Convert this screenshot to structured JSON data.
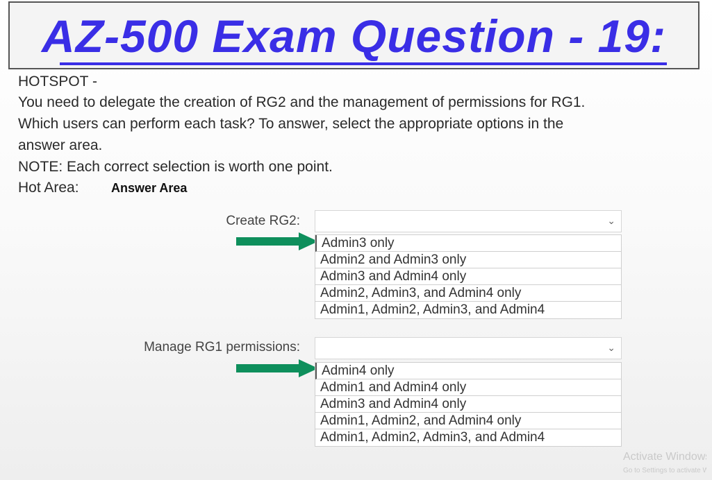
{
  "title": "AZ-500 Exam Question - 19:",
  "question": {
    "line1": "HOTSPOT -",
    "line2": "You need to delegate the creation of RG2 and the management of permissions for RG1.",
    "line3": "Which users can perform each task? To answer, select the appropriate options in the",
    "line4": "answer area.",
    "line5": "NOTE: Each correct selection is worth one point.",
    "hot_area_label": "Hot Area:",
    "answer_area_label": "Answer Area"
  },
  "create_rg2": {
    "label": "Create RG2:",
    "selected_index": 0,
    "options": [
      "Admin3 only",
      "Admin2 and Admin3 only",
      "Admin3 and Admin4 only",
      "Admin2, Admin3, and Admin4 only",
      "Admin1, Admin2, Admin3, and Admin4"
    ]
  },
  "manage_rg1": {
    "label": "Manage RG1 permissions:",
    "selected_index": 0,
    "options": [
      "Admin4 only",
      "Admin1 and Admin4 only",
      "Admin3 and Admin4 only",
      "Admin1, Admin2, and Admin4 only",
      "Admin1, Admin2, Admin3, and Admin4"
    ]
  },
  "colors": {
    "title": "#3a2ee6",
    "arrow": "#0e8f5c"
  },
  "icons": {
    "dropdown": "chevron-down-icon",
    "pointer": "arrow-right-icon"
  },
  "watermark": {
    "line1": "Activate Windows",
    "line2": "Go to Settings to activate Windows."
  }
}
